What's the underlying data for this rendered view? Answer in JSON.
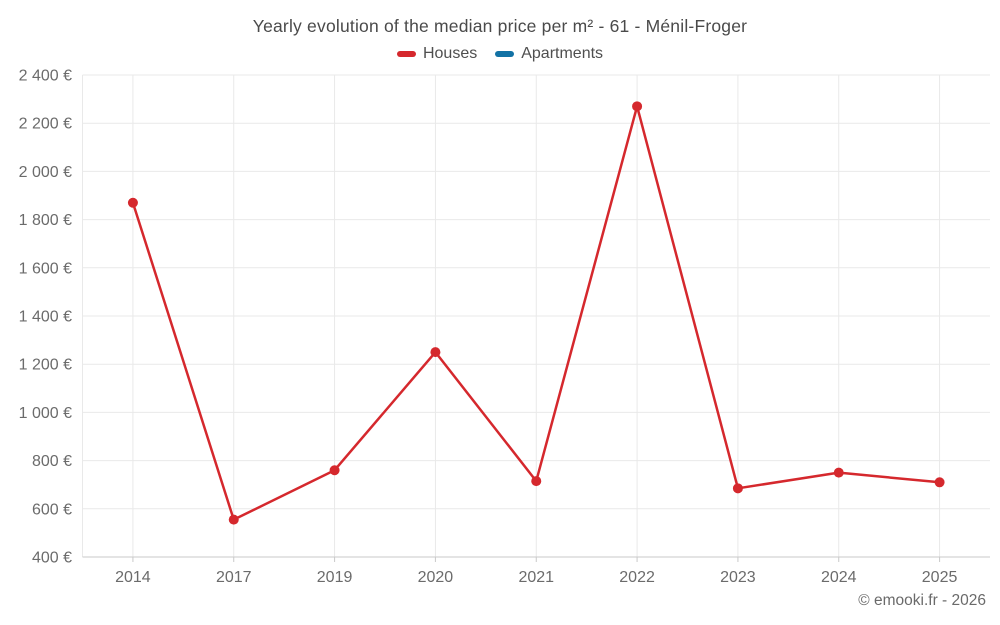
{
  "page": {
    "title": "Yearly evolution of the median price per m² - 61 - Ménil-Froger",
    "copyright": "© emooki.fr - 2026"
  },
  "legend": {
    "items": [
      {
        "label": "Houses",
        "color": "#d5282d"
      },
      {
        "label": "Apartments",
        "color": "#1272a5"
      }
    ]
  },
  "colors": {
    "grid": "#e9e9e9",
    "axis_line": "#c9c9c9",
    "tick": "#c9c9c9",
    "axis_text": "#6b6b6b",
    "title_text": "#4a4a4a"
  },
  "chart_data": {
    "type": "line",
    "title": "Yearly evolution of the median price per m² - 61 - Ménil-Froger",
    "xlabel": "",
    "ylabel": "",
    "categories": [
      "2014",
      "2017",
      "2019",
      "2020",
      "2021",
      "2022",
      "2023",
      "2024",
      "2025"
    ],
    "series": [
      {
        "name": "Houses",
        "color": "#d5282d",
        "values": [
          1870,
          555,
          760,
          1250,
          715,
          2270,
          685,
          750,
          710
        ]
      },
      {
        "name": "Apartments",
        "color": "#1272a5",
        "values": []
      }
    ],
    "unit": "€",
    "ylim": [
      400,
      2400
    ],
    "y_ticks": [
      400,
      600,
      800,
      1000,
      1200,
      1400,
      1600,
      1800,
      2000,
      2200,
      2400
    ],
    "y_tick_labels": [
      "400 €",
      "600 €",
      "800 €",
      "1 000 €",
      "1 200 €",
      "1 400 €",
      "1 600 €",
      "1 800 €",
      "2 000 €",
      "2 200 €",
      "2 400 €"
    ],
    "grid": true,
    "legend_position": "top",
    "marker": "circle"
  }
}
